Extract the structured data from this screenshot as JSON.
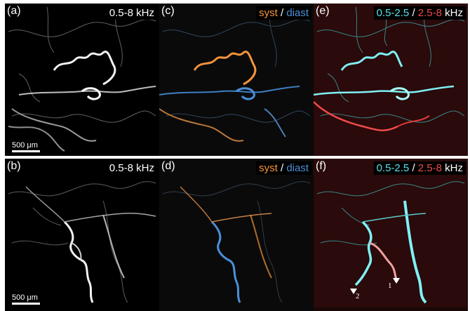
{
  "panels": {
    "a": {
      "label": "(a)",
      "band": "0.5-8 kHz",
      "scale_bar": "500 μm"
    },
    "b": {
      "label": "(b)",
      "band": "0.5-8 kHz",
      "scale_bar": "500 μm"
    },
    "c": {
      "label": "(c)",
      "syst": "syst",
      "sep": " / ",
      "diast": "diast"
    },
    "d": {
      "label": "(d)",
      "syst": "syst",
      "sep": " / ",
      "diast": "diast"
    },
    "e": {
      "label": "(e)",
      "low": "0.5-2.5",
      "sep": " / ",
      "high": "2.5-8",
      "unit": " kHz"
    },
    "f": {
      "label": "(f)",
      "low": "0.5-2.5",
      "sep": " / ",
      "high": "2.5-8",
      "unit": " kHz",
      "arrow1": "1",
      "arrow2": "2"
    }
  },
  "colors": {
    "syst": "#f5943b",
    "diast": "#4a90d9",
    "low_band": "#5ee0e6",
    "high_band": "#f04a4a",
    "vessel_gray": "#e8e8e8"
  }
}
